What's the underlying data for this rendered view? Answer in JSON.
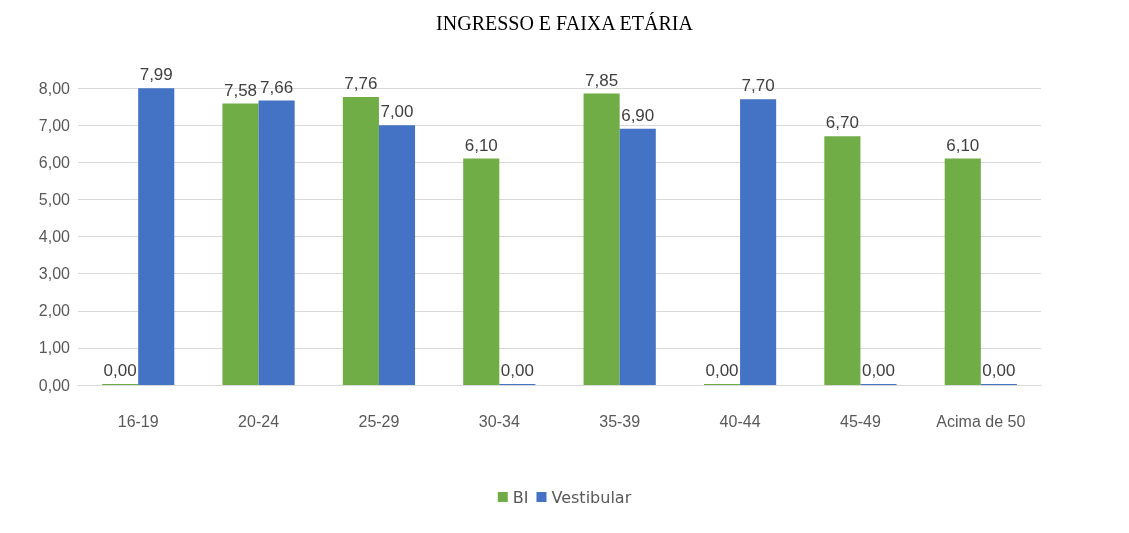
{
  "chart_data": {
    "type": "bar",
    "title": "INGRESSO E FAIXA ETÁRIA",
    "categories": [
      "16-19",
      "20-24",
      "25-29",
      "30-34",
      "35-39",
      "40-44",
      "45-49",
      "Acima de 50"
    ],
    "series": [
      {
        "name": "BI",
        "color": "#70ad47",
        "values": [
          0,
          7.58,
          7.76,
          6.1,
          7.85,
          0,
          6.7,
          6.1
        ],
        "value_labels": [
          "0,00",
          "7,58",
          "7,76",
          "6,10",
          "7,85",
          "0,00",
          "6,70",
          "6,10"
        ]
      },
      {
        "name": "Vestibular",
        "color": "#4472c4",
        "values": [
          7.99,
          7.66,
          7,
          0,
          6.9,
          7.7,
          0,
          0
        ],
        "value_labels": [
          "7,99",
          "7,66",
          "7,00",
          "0,00",
          "6,90",
          "7,70",
          "0,00",
          "0,00"
        ]
      }
    ],
    "ylim": [
      0,
      8
    ],
    "yticks": [
      {
        "value": 0,
        "label": "0,00"
      },
      {
        "value": 1,
        "label": "1,00"
      },
      {
        "value": 2,
        "label": "2,00"
      },
      {
        "value": 3,
        "label": "3,00"
      },
      {
        "value": 4,
        "label": "4,00"
      },
      {
        "value": 5,
        "label": "5,00"
      },
      {
        "value": 6,
        "label": "6,00"
      },
      {
        "value": 7,
        "label": "7,00"
      },
      {
        "value": 8,
        "label": "8,00"
      }
    ],
    "grid": "y",
    "legend": "bottom"
  }
}
